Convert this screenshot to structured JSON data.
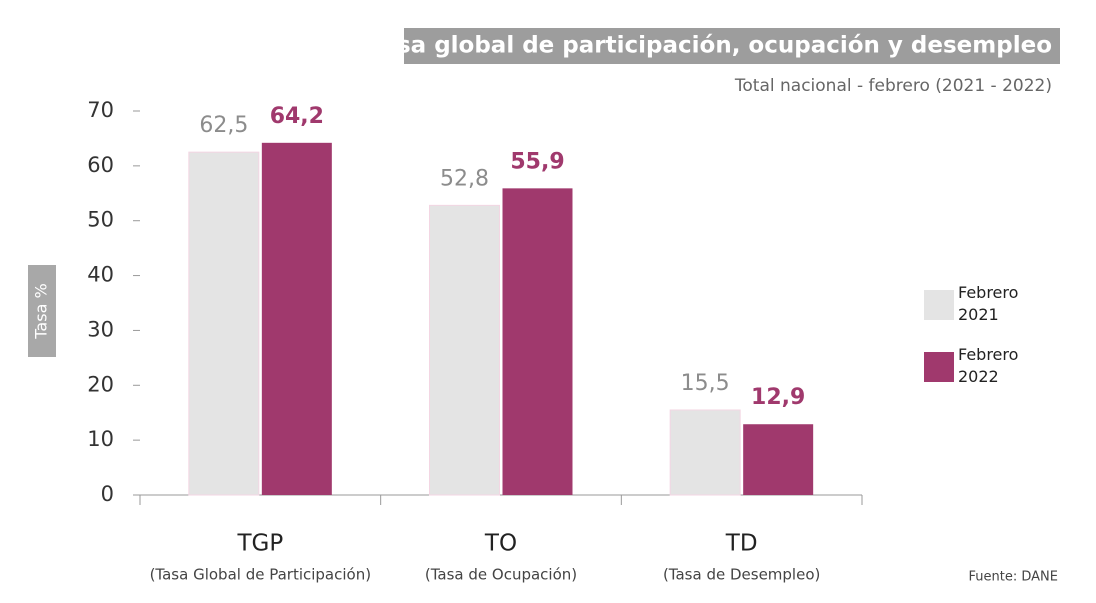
{
  "chart_data": {
    "type": "bar",
    "title": "Tasa global de participación, ocupación y desempleo",
    "subtitle": "Total nacional - febrero (2021 - 2022)",
    "y_label": "Tasa %",
    "source": "Fuente: DANE",
    "categories": [
      "TGP",
      "TO",
      "TD"
    ],
    "category_descriptions": [
      "(Tasa Global de Participación)",
      "(Tasa de Ocupación)",
      "(Tasa de Desempleo)"
    ],
    "series": [
      {
        "name": "Febrero 2021",
        "color": "#e4e4e4",
        "label_color": "#8c8c8c",
        "values": [
          62.5,
          52.8,
          15.5
        ],
        "value_labels": [
          "62,5",
          "52,8",
          "15,5"
        ]
      },
      {
        "name": "Febrero 2022",
        "color": "#a0396d",
        "label_color": "#a0396d",
        "values": [
          64.2,
          55.9,
          12.9
        ],
        "value_labels": [
          "64,2",
          "55,9",
          "12,9"
        ]
      }
    ],
    "ylim": [
      0,
      70
    ],
    "yticks": [
      0,
      10,
      20,
      30,
      40,
      50,
      60,
      70
    ],
    "legend": "right"
  }
}
